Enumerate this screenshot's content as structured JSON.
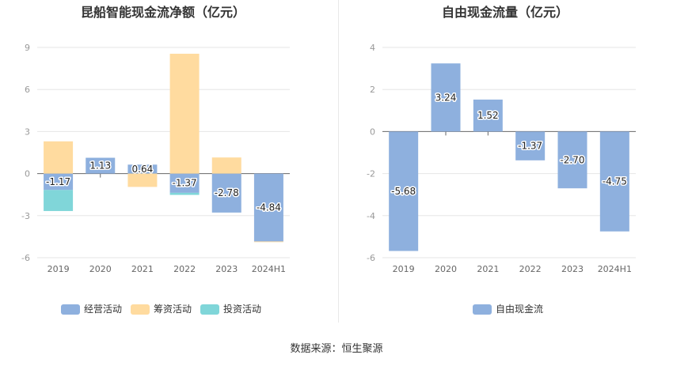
{
  "source_text": "数据来源：恒生聚源",
  "chart_data": [
    {
      "type": "bar",
      "stacked": true,
      "title": "昆船智能现金流净额（亿元）",
      "categories": [
        "2019",
        "2020",
        "2021",
        "2022",
        "2023",
        "2024H1"
      ],
      "ylim": [
        -6,
        9
      ],
      "yticks": [
        -6,
        -3,
        0,
        3,
        6,
        9
      ],
      "ytick_labels": [
        "-6",
        "-3",
        "0",
        "3",
        "6",
        "9"
      ],
      "grid": true,
      "legend_position": "bottom-center",
      "series": [
        {
          "name": "经营活动",
          "color": "#8eb0de",
          "values": [
            -1.17,
            1.13,
            0.64,
            -1.37,
            -2.78,
            -4.84
          ],
          "labels": [
            "-1.17",
            "1.13",
            "0.64",
            "-1.37",
            "-2.78",
            "-4.84"
          ]
        },
        {
          "name": "筹资活动",
          "color": "#ffdb9f",
          "values": [
            2.3,
            0,
            -0.95,
            8.55,
            1.15,
            -0.05
          ]
        },
        {
          "name": "投资活动",
          "color": "#80d6d9",
          "values": [
            -1.5,
            0,
            0,
            -0.15,
            0,
            0
          ]
        }
      ]
    },
    {
      "type": "bar",
      "title": "自由现金流量（亿元）",
      "categories": [
        "2019",
        "2020",
        "2021",
        "2022",
        "2023",
        "2024H1"
      ],
      "ylim": [
        -6,
        4
      ],
      "yticks": [
        -6,
        -4,
        -2,
        0,
        2,
        4
      ],
      "ytick_labels": [
        "-6",
        "-4",
        "-2",
        "0",
        "2",
        "4"
      ],
      "grid": true,
      "legend_position": "bottom-center",
      "series": [
        {
          "name": "自由现金流",
          "color": "#8eb0de",
          "values": [
            -5.68,
            3.24,
            1.52,
            -1.37,
            -2.7,
            -4.75
          ],
          "labels": [
            "-5.68",
            "3.24",
            "1.52",
            "-1.37",
            "-2.70",
            "-4.75"
          ]
        }
      ]
    }
  ]
}
